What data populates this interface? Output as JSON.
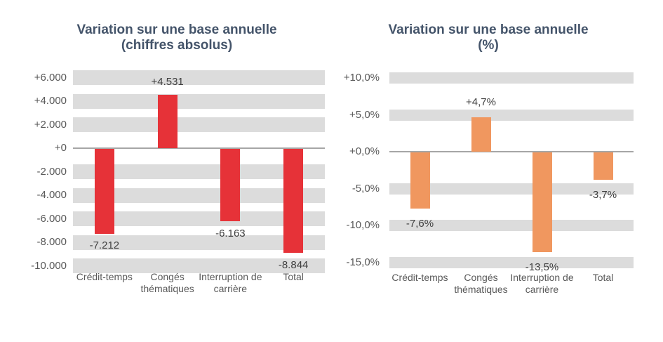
{
  "page": {
    "background": "#ffffff"
  },
  "colors": {
    "band": "#dcdcdc",
    "zero_line": "#a6a6a6",
    "title_text": "#44546a",
    "axis_text": "#595959",
    "data_label_text": "#404040",
    "bar_red": "#e63238",
    "bar_orange": "#f0975f"
  },
  "chart_data": [
    {
      "type": "bar",
      "title": "Variation sur une base annuelle",
      "subtitle": "(chiffres absolus)",
      "categories": [
        "Crédit-temps",
        "Congés thématiques",
        "Interruption de carrière",
        "Total"
      ],
      "values": [
        -7212,
        4531,
        -6163,
        -8844
      ],
      "data_labels": [
        "-7.212",
        "+4.531",
        "-6.163",
        "-8.844"
      ],
      "bar_color": "#e63238",
      "ylim": [
        -10000,
        6000
      ],
      "ytick_values": [
        6000,
        4000,
        2000,
        0,
        -2000,
        -4000,
        -6000,
        -8000,
        -10000
      ],
      "ytick_labels": [
        "+6.000",
        "+4.000",
        "+2.000",
        "+0",
        "-2.000",
        "-4.000",
        "-6.000",
        "-8.000",
        "-10.000"
      ],
      "grid": "banded-rows",
      "legend": "none"
    },
    {
      "type": "bar",
      "title": "Variation sur une base annuelle",
      "subtitle": "(%)",
      "categories": [
        "Crédit-temps",
        "Congés thématiques",
        "Interruption de carrière",
        "Total"
      ],
      "values": [
        -7.6,
        4.7,
        -13.5,
        -3.7
      ],
      "data_labels": [
        "-7,6%",
        "+4,7%",
        "-13,5%",
        "-3,7%"
      ],
      "bar_color": "#f0975f",
      "ylim": [
        -15,
        10
      ],
      "ytick_values": [
        10,
        5,
        0,
        -5,
        -10,
        -15
      ],
      "ytick_labels": [
        "+10,0%",
        "+5,0%",
        "+0,0%",
        "-5,0%",
        "-10,0%",
        "-15,0%"
      ],
      "grid": "banded-rows",
      "legend": "none"
    }
  ]
}
